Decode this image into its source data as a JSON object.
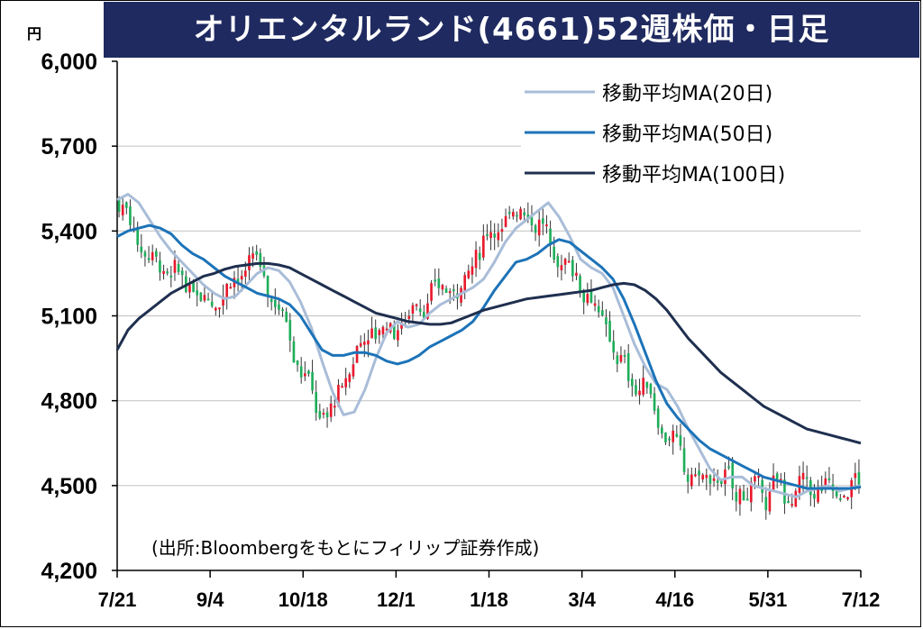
{
  "title": "オリエンタルランド(4661)52週株価・日足",
  "source": "(出所:Bloombergをもとにフィリップ証券作成)",
  "colors": {
    "title_bg": "#1f2a60",
    "up": "#e8192c",
    "down": "#1fae5b",
    "ma20": "#a9bdd8",
    "ma50": "#1c73b8",
    "ma100": "#1f2f4f",
    "grid": "#c8c8c8"
  },
  "chart_data": {
    "type": "candlestick",
    "ylabel": "円",
    "ylim": [
      4200,
      6000
    ],
    "yticks": [
      6000,
      5700,
      5400,
      5100,
      4800,
      4500,
      4200
    ],
    "ytick_labels": [
      "6,000",
      "5,700",
      "5,400",
      "5,100",
      "4,800",
      "4,500",
      "4,200"
    ],
    "xticks": [
      "7/21",
      "9/4",
      "10/18",
      "12/1",
      "1/18",
      "3/4",
      "4/16",
      "5/31",
      "7/12"
    ],
    "grid": true,
    "legend_position": "top-right",
    "series": [
      {
        "name": "移動平均MA(20日)",
        "color": "#a9bdd8",
        "values": [
          5510,
          5530,
          5500,
          5440,
          5380,
          5330,
          5290,
          5250,
          5210,
          5180,
          5160,
          5170,
          5210,
          5250,
          5270,
          5260,
          5220,
          5150,
          5060,
          4940,
          4830,
          4750,
          4760,
          4840,
          4950,
          5040,
          5080,
          5060,
          5070,
          5110,
          5140,
          5160,
          5180,
          5200,
          5230,
          5290,
          5360,
          5410,
          5440,
          5470,
          5500,
          5450,
          5380,
          5300,
          5270,
          5250,
          5200,
          5100,
          5000,
          4920,
          4860,
          4840,
          4780,
          4700,
          4630,
          4560,
          4520,
          4530,
          4530,
          4500,
          4490,
          4480,
          4470,
          4460,
          4480,
          4490,
          4500,
          4480,
          4490,
          4500
        ]
      },
      {
        "name": "移動平均MA(50日)",
        "color": "#1c73b8",
        "values": [
          5380,
          5400,
          5410,
          5420,
          5410,
          5390,
          5350,
          5320,
          5300,
          5270,
          5240,
          5220,
          5200,
          5180,
          5170,
          5160,
          5140,
          5100,
          5040,
          4980,
          4960,
          4960,
          4970,
          4970,
          4960,
          4940,
          4930,
          4940,
          4960,
          4990,
          5010,
          5030,
          5050,
          5080,
          5130,
          5190,
          5240,
          5290,
          5300,
          5320,
          5350,
          5370,
          5360,
          5330,
          5300,
          5270,
          5230,
          5160,
          5070,
          4970,
          4870,
          4790,
          4740,
          4700,
          4660,
          4630,
          4610,
          4590,
          4570,
          4550,
          4530,
          4520,
          4510,
          4500,
          4490,
          4490,
          4490,
          4490,
          4490,
          4495
        ]
      },
      {
        "name": "移動平均MA(100日)",
        "color": "#1f2f4f",
        "values": [
          4980,
          5050,
          5090,
          5120,
          5150,
          5180,
          5200,
          5220,
          5240,
          5250,
          5265,
          5275,
          5280,
          5285,
          5285,
          5280,
          5270,
          5250,
          5230,
          5210,
          5190,
          5170,
          5150,
          5130,
          5110,
          5100,
          5090,
          5080,
          5075,
          5070,
          5070,
          5075,
          5090,
          5105,
          5120,
          5130,
          5140,
          5150,
          5160,
          5165,
          5170,
          5175,
          5180,
          5185,
          5190,
          5200,
          5210,
          5215,
          5210,
          5190,
          5160,
          5120,
          5070,
          5020,
          4980,
          4940,
          4900,
          4870,
          4840,
          4810,
          4780,
          4760,
          4740,
          4720,
          4700,
          4690,
          4680,
          4670,
          4660,
          4650
        ]
      }
    ]
  },
  "legend": [
    {
      "label": "移動平均MA(20日)",
      "color": "#a9bdd8"
    },
    {
      "label": "移動平均MA(50日)",
      "color": "#1c73b8"
    },
    {
      "label": "移動平均MA(100日)",
      "color": "#1f2f4f"
    }
  ]
}
